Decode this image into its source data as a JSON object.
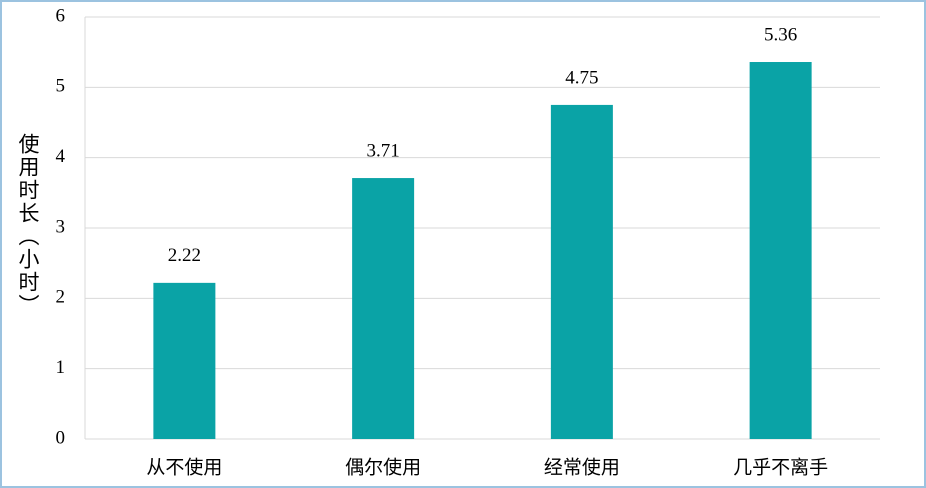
{
  "chart_data": {
    "type": "bar",
    "y_label": "使用时长（小时）",
    "categories": [
      "从不使用",
      "偶尔使用",
      "经常使用",
      "几乎不离手"
    ],
    "values": [
      2.22,
      3.71,
      4.75,
      5.36
    ],
    "color": "#0aa3a6",
    "ylim": [
      0,
      6
    ],
    "yticks": [
      0,
      1,
      2,
      3,
      4,
      5,
      6
    ],
    "grid": true,
    "value_labels_shown": true
  }
}
